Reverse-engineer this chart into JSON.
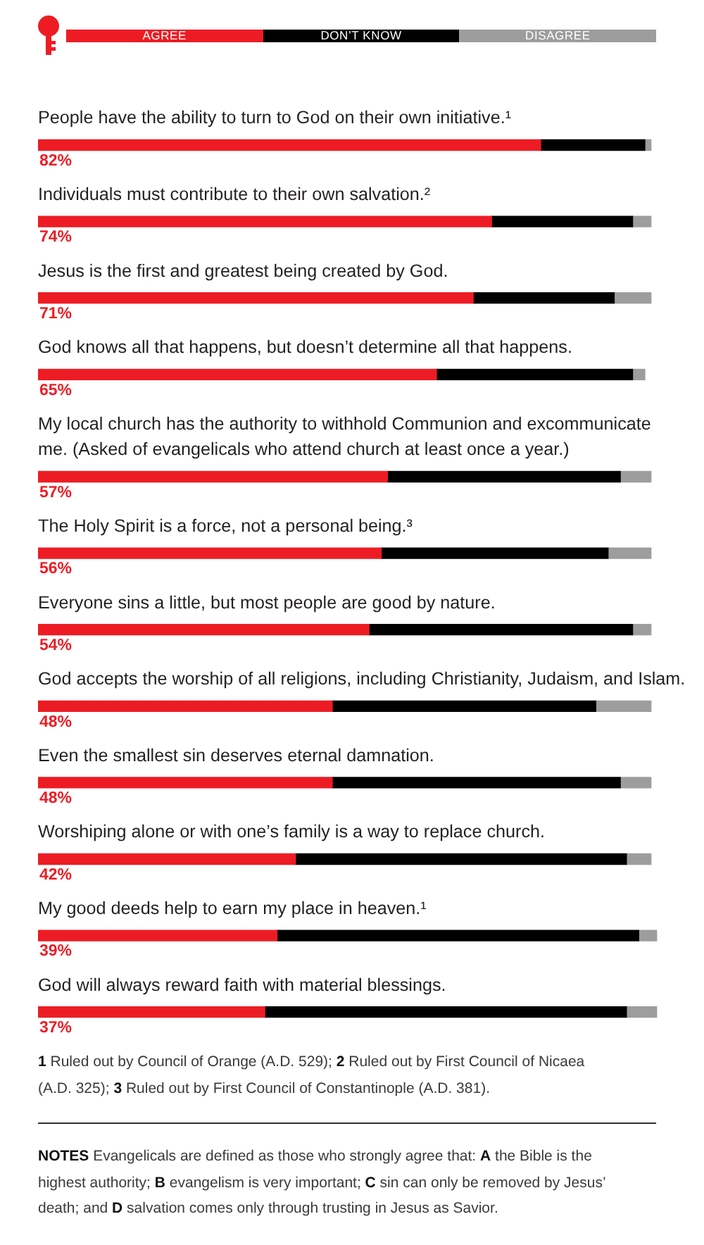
{
  "chart_data": {
    "type": "bar",
    "orientation": "horizontal",
    "stacked": true,
    "legend": "top",
    "categories": [
      "People have the ability to turn to God on their own initiative.¹",
      "Individuals must contribute to their own salvation.²",
      "Jesus is the first and greatest being created by God.",
      "God knows all that happens, but doesn’t determine all that happens.",
      "My local church has the authority to withhold Communion and excommunicate\nme. (Asked of evangelicals who attend church at least once a year.)",
      "The Holy Spirit is a force, not a personal being.³",
      "Everyone sins a little, but most people are good by nature.",
      "God accepts the worship of all religions, including Christianity, Judaism, and Islam.",
      "Even the smallest sin deserves eternal damnation.",
      "Worshiping alone or with one’s family is a way to replace church.",
      "My good deeds help to earn my place in heaven.¹",
      "God will always reward faith with material blessings."
    ],
    "series": [
      {
        "name": "AGREE",
        "color": "#ed1c24",
        "values": [
          82,
          74,
          71,
          65,
          57,
          56,
          54,
          48,
          48,
          42,
          39,
          37
        ],
        "value_labels": [
          "82%",
          "74%",
          "71%",
          "65%",
          "57%",
          "56%",
          "54%",
          "48%",
          "48%",
          "42%",
          "39%",
          "37%"
        ]
      },
      {
        "name": "DON’T KNOW",
        "color": "#000000",
        "values": [
          17,
          23,
          23,
          32,
          38,
          37,
          43,
          43,
          47,
          54,
          59,
          59
        ]
      },
      {
        "name": "DISAGREE",
        "color": "#9d9d9d",
        "values": [
          1,
          3,
          6,
          2,
          5,
          7,
          3,
          9,
          5,
          4,
          3,
          5
        ]
      }
    ],
    "annotations": [
      "1 Ruled out by Council of Orange (A.D. 529); 2 Ruled out by First Council of Nicaea (A.D. 325); 3 Ruled out by First Council of Constantinople (A.D. 381).",
      "NOTES Evangelicals are defined as those who strongly agree that: A the Bible is the highest authority; B evangelism is very important; C sin can only be removed by Jesus’ death; and D salvation comes only through trusting in Jesus as Savior."
    ]
  }
}
